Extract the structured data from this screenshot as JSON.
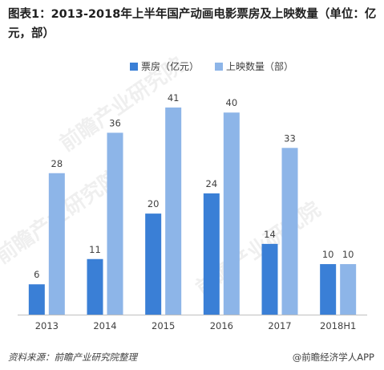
{
  "title": "图表1：2013-2018年上半年国产动画电影票房及上映数量（单位：亿元，部）",
  "source": "资料来源：前瞻产业研究院整理",
  "brand": "@前瞻经济学人APP",
  "watermark": "前瞻产业研究院",
  "colors": {
    "box_office": "#3a7fd6",
    "releases": "#8db5e8",
    "axis": "#bfbfbf"
  },
  "chart_data": {
    "type": "bar",
    "title": "图表1：2013-2018年上半年国产动画电影票房及上映数量（单位：亿元，部）",
    "xlabel": "",
    "ylabel": "",
    "categories": [
      "2013",
      "2014",
      "2015",
      "2016",
      "2017",
      "2018H1"
    ],
    "series": [
      {
        "name": "票房（亿元）",
        "values": [
          6,
          11,
          20,
          24,
          14,
          10
        ]
      },
      {
        "name": "上映数量（部）",
        "values": [
          28,
          36,
          41,
          40,
          33,
          10
        ]
      }
    ],
    "ylim": [
      0,
      45
    ],
    "grid": false,
    "legend": "top"
  }
}
